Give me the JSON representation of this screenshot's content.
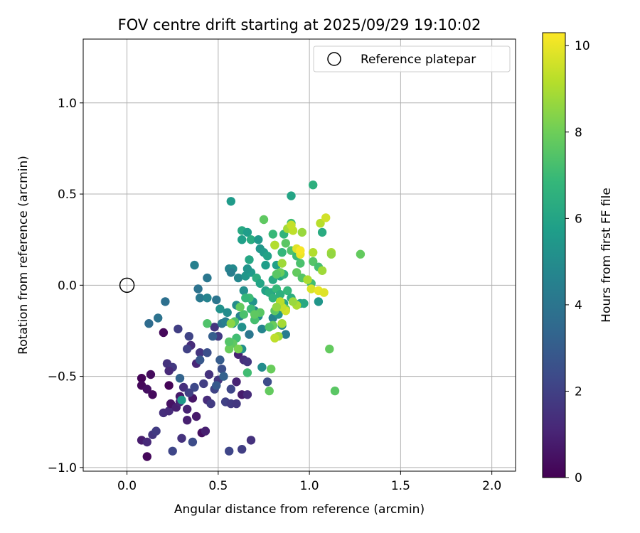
{
  "chart_data": {
    "type": "scatter",
    "title": "FOV centre drift starting at 2025/09/29 19:10:02",
    "xlabel": "Angular distance from reference (arcmin)",
    "ylabel": "Rotation from reference (arcmin)",
    "xlim": [
      -0.24,
      2.13
    ],
    "ylim": [
      -1.02,
      1.35
    ],
    "xticks": [
      0.0,
      0.5,
      1.0,
      1.5,
      2.0
    ],
    "xtick_labels": [
      "0.0",
      "0.5",
      "1.0",
      "1.5",
      "2.0"
    ],
    "yticks": [
      -1.0,
      -0.5,
      0.0,
      0.5,
      1.0
    ],
    "ytick_labels": [
      "−1.0",
      "−0.5",
      "0.0",
      "0.5",
      "1.0"
    ],
    "grid": true,
    "legend": {
      "label": "Reference platepar",
      "placement": "top-right"
    },
    "reference_point": {
      "x": 0.0,
      "y": 0.0
    },
    "colorbar": {
      "label": "Hours from first FF file",
      "range": [
        0,
        10.3
      ],
      "ticks": [
        0,
        2,
        4,
        6,
        8,
        10
      ],
      "tick_labels": [
        "0",
        "2",
        "4",
        "6",
        "8",
        "10"
      ],
      "colormap": "viridis",
      "colormap_stops": [
        "#440154",
        "#482878",
        "#3e4989",
        "#31688e",
        "#26828e",
        "#1f9e89",
        "#35b779",
        "#6ece58",
        "#b5de2b",
        "#fde725"
      ]
    },
    "points": [
      [
        0.08,
        -0.51,
        0.1
      ],
      [
        0.08,
        -0.55,
        0.2
      ],
      [
        0.13,
        -0.49,
        0.3
      ],
      [
        0.11,
        -0.57,
        0.4
      ],
      [
        0.14,
        -0.6,
        0.3
      ],
      [
        0.2,
        -0.26,
        0.2
      ],
      [
        0.23,
        -0.55,
        0.1
      ],
      [
        0.11,
        -0.94,
        0.2
      ],
      [
        0.08,
        -0.85,
        0.8
      ],
      [
        0.11,
        -0.86,
        1.2
      ],
      [
        0.14,
        -0.82,
        1.6
      ],
      [
        0.16,
        -0.8,
        1.8
      ],
      [
        0.2,
        -0.7,
        1.4
      ],
      [
        0.23,
        -0.69,
        1.3
      ],
      [
        0.24,
        -0.65,
        0.5
      ],
      [
        0.27,
        -0.67,
        0.9
      ],
      [
        0.29,
        -0.61,
        0.7
      ],
      [
        0.29,
        -0.64,
        1.1
      ],
      [
        0.31,
        -0.56,
        1.4
      ],
      [
        0.33,
        -0.74,
        0.9
      ],
      [
        0.36,
        -0.62,
        0.6
      ],
      [
        0.38,
        -0.72,
        0.7
      ],
      [
        0.41,
        -0.81,
        0.4
      ],
      [
        0.43,
        -0.8,
        0.9
      ],
      [
        0.33,
        -0.68,
        1.0
      ],
      [
        0.3,
        -0.84,
        1.5
      ],
      [
        0.36,
        -0.86,
        2.4
      ],
      [
        0.25,
        -0.91,
        2.2
      ],
      [
        0.22,
        -0.43,
        1.5
      ],
      [
        0.25,
        -0.45,
        1.7
      ],
      [
        0.23,
        -0.47,
        1.2
      ],
      [
        0.28,
        -0.24,
        1.9
      ],
      [
        0.34,
        -0.28,
        2.1
      ],
      [
        0.35,
        -0.33,
        1.3
      ],
      [
        0.33,
        -0.35,
        2.0
      ],
      [
        0.38,
        -0.43,
        1.1
      ],
      [
        0.4,
        -0.37,
        1.6
      ],
      [
        0.37,
        -0.56,
        2.3
      ],
      [
        0.34,
        -0.59,
        2.0
      ],
      [
        0.42,
        -0.54,
        1.9
      ],
      [
        0.45,
        -0.49,
        1.5
      ],
      [
        0.44,
        -0.63,
        1.3
      ],
      [
        0.46,
        -0.65,
        1.8
      ],
      [
        0.48,
        -0.57,
        2.1
      ],
      [
        0.5,
        -0.52,
        1.7
      ],
      [
        0.52,
        -0.46,
        2.5
      ],
      [
        0.54,
        -0.64,
        2.0
      ],
      [
        0.57,
        -0.65,
        1.8
      ],
      [
        0.6,
        -0.65,
        1.7
      ],
      [
        0.57,
        -0.57,
        2.2
      ],
      [
        0.6,
        -0.53,
        1.0
      ],
      [
        0.63,
        -0.6,
        0.8
      ],
      [
        0.66,
        -0.6,
        1.3
      ],
      [
        0.61,
        -0.38,
        1.0
      ],
      [
        0.64,
        -0.41,
        1.4
      ],
      [
        0.66,
        -0.42,
        1.6
      ],
      [
        0.5,
        -0.28,
        1.8
      ],
      [
        0.48,
        -0.23,
        1.6
      ],
      [
        0.56,
        -0.91,
        2.2
      ],
      [
        0.63,
        -0.9,
        1.9
      ],
      [
        0.68,
        -0.85,
        1.5
      ],
      [
        0.77,
        -0.53,
        2.4
      ],
      [
        0.29,
        -0.51,
        3.3
      ],
      [
        0.3,
        -0.63,
        5.5
      ],
      [
        0.4,
        -0.41,
        2.8
      ],
      [
        0.44,
        -0.37,
        2.5
      ],
      [
        0.53,
        -0.5,
        3.2
      ],
      [
        0.49,
        -0.55,
        2.9
      ],
      [
        0.51,
        -0.41,
        3.0
      ],
      [
        0.47,
        -0.28,
        3.1
      ],
      [
        0.12,
        -0.21,
        3.6
      ],
      [
        0.17,
        -0.18,
        3.9
      ],
      [
        0.21,
        -0.09,
        3.8
      ],
      [
        0.37,
        0.11,
        4.5
      ],
      [
        0.44,
        0.04,
        4.1
      ],
      [
        0.39,
        -0.02,
        3.9
      ],
      [
        0.4,
        -0.07,
        4.2
      ],
      [
        0.44,
        -0.07,
        4.6
      ],
      [
        0.49,
        -0.08,
        4.0
      ],
      [
        0.51,
        -0.13,
        5.2
      ],
      [
        0.52,
        -0.21,
        4.1
      ],
      [
        0.54,
        -0.2,
        4.4
      ],
      [
        0.55,
        -0.15,
        5.0
      ],
      [
        0.58,
        -0.21,
        5.5
      ],
      [
        0.6,
        -0.11,
        5.0
      ],
      [
        0.62,
        -0.17,
        4.6
      ],
      [
        0.63,
        -0.23,
        5.2
      ],
      [
        0.67,
        -0.27,
        4.1
      ],
      [
        0.56,
        0.09,
        4.6
      ],
      [
        0.58,
        0.09,
        4.9
      ],
      [
        0.57,
        0.07,
        4.4
      ],
      [
        0.61,
        0.04,
        4.8
      ],
      [
        0.64,
        -0.03,
        5.1
      ],
      [
        0.65,
        0.05,
        5.4
      ],
      [
        0.68,
        0.07,
        5.6
      ],
      [
        0.69,
        -0.09,
        5.3
      ],
      [
        0.7,
        -0.14,
        4.7
      ],
      [
        0.72,
        -0.17,
        5.0
      ],
      [
        0.74,
        -0.24,
        4.7
      ],
      [
        0.76,
        -0.03,
        5.9
      ],
      [
        0.79,
        -0.04,
        5.2
      ],
      [
        0.8,
        -0.18,
        4.6
      ],
      [
        0.83,
        -0.16,
        5.3
      ],
      [
        0.85,
        -0.22,
        4.8
      ],
      [
        0.87,
        -0.27,
        4.3
      ],
      [
        0.63,
        -0.35,
        5.1
      ],
      [
        0.74,
        -0.45,
        5.0
      ],
      [
        0.57,
        0.46,
        5.6
      ],
      [
        0.63,
        0.3,
        6.2
      ],
      [
        0.63,
        0.25,
        5.8
      ],
      [
        0.66,
        0.29,
        5.7
      ],
      [
        0.68,
        0.25,
        6.3
      ],
      [
        0.72,
        0.25,
        5.5
      ],
      [
        0.73,
        0.2,
        5.4
      ],
      [
        0.75,
        0.18,
        5.6
      ],
      [
        0.77,
        0.16,
        5.9
      ],
      [
        0.67,
        0.14,
        6.1
      ],
      [
        0.66,
        0.09,
        5.3
      ],
      [
        0.71,
        0.04,
        6.4
      ],
      [
        0.73,
        0.01,
        6.0
      ],
      [
        0.76,
        0.11,
        5.7
      ],
      [
        0.8,
        0.03,
        6.2
      ],
      [
        0.82,
        0.11,
        5.8
      ],
      [
        0.84,
        0.05,
        6.0
      ],
      [
        0.86,
        0.06,
        6.6
      ],
      [
        0.78,
        -0.04,
        6.3
      ],
      [
        0.8,
        -0.07,
        6.6
      ],
      [
        0.82,
        -0.02,
        6.9
      ],
      [
        0.84,
        -0.05,
        6.5
      ],
      [
        0.86,
        -0.1,
        6.1
      ],
      [
        0.88,
        -0.03,
        6.8
      ],
      [
        0.9,
        -0.07,
        6.4
      ],
      [
        0.95,
        -0.1,
        5.9
      ],
      [
        0.97,
        -0.1,
        6.2
      ],
      [
        1.05,
        -0.09,
        5.4
      ],
      [
        0.9,
        0.49,
        6.0
      ],
      [
        1.02,
        0.55,
        6.5
      ],
      [
        1.07,
        0.29,
        6.3
      ],
      [
        0.9,
        0.34,
        7.1
      ],
      [
        0.86,
        0.28,
        6.7
      ],
      [
        0.8,
        0.28,
        6.9
      ],
      [
        0.75,
        0.36,
        7.7
      ],
      [
        0.81,
        0.22,
        7.2
      ],
      [
        0.85,
        0.18,
        6.8
      ],
      [
        0.87,
        0.23,
        7.6
      ],
      [
        0.9,
        0.19,
        7.4
      ],
      [
        0.93,
        0.16,
        7.0
      ],
      [
        0.95,
        0.12,
        7.3
      ],
      [
        0.93,
        0.07,
        7.8
      ],
      [
        0.96,
        0.04,
        7.5
      ],
      [
        1.01,
        0.01,
        7.1
      ],
      [
        1.02,
        0.13,
        7.5
      ],
      [
        1.05,
        0.1,
        7.2
      ],
      [
        0.84,
        0.07,
        7.9
      ],
      [
        0.82,
        0.06,
        7.6
      ],
      [
        0.87,
        -0.13,
        7.8
      ],
      [
        0.84,
        -0.11,
        8.0
      ],
      [
        0.81,
        -0.14,
        7.7
      ],
      [
        0.8,
        -0.22,
        7.9
      ],
      [
        0.78,
        -0.23,
        7.4
      ],
      [
        0.73,
        -0.15,
        7.6
      ],
      [
        0.7,
        -0.19,
        7.2
      ],
      [
        0.68,
        -0.13,
        7.0
      ],
      [
        0.64,
        -0.16,
        7.3
      ],
      [
        0.62,
        -0.12,
        7.8
      ],
      [
        0.59,
        -0.2,
        7.4
      ],
      [
        0.6,
        -0.29,
        7.1
      ],
      [
        0.58,
        -0.32,
        7.7
      ],
      [
        0.56,
        -0.35,
        7.9
      ],
      [
        0.56,
        -0.31,
        7.5
      ],
      [
        0.44,
        -0.21,
        7.4
      ],
      [
        0.66,
        -0.48,
        7.1
      ],
      [
        0.79,
        -0.46,
        7.9
      ],
      [
        0.78,
        -0.58,
        7.8
      ],
      [
        1.11,
        -0.35,
        7.8
      ],
      [
        1.14,
        -0.58,
        7.6
      ],
      [
        1.28,
        0.17,
        7.8
      ],
      [
        0.7,
        -0.16,
        7.7
      ],
      [
        0.67,
        -0.07,
        7.0
      ],
      [
        0.65,
        -0.07,
        6.8
      ],
      [
        0.83,
        -0.28,
        8.9
      ],
      [
        0.81,
        -0.29,
        9.3
      ],
      [
        0.85,
        -0.21,
        8.9
      ],
      [
        0.87,
        -0.14,
        9.6
      ],
      [
        0.85,
        -0.12,
        9.4
      ],
      [
        0.84,
        -0.09,
        9.2
      ],
      [
        0.85,
        0.12,
        8.8
      ],
      [
        0.81,
        0.22,
        9.1
      ],
      [
        0.88,
        0.31,
        8.9
      ],
      [
        0.91,
        0.3,
        9.3
      ],
      [
        0.9,
        0.33,
        9.4
      ],
      [
        0.96,
        0.29,
        8.7
      ],
      [
        0.93,
        0.2,
        9.8
      ],
      [
        0.95,
        0.17,
        10.0
      ],
      [
        0.95,
        0.19,
        10.2
      ],
      [
        1.02,
        0.18,
        9.1
      ],
      [
        1.12,
        0.18,
        9.0
      ],
      [
        1.12,
        0.17,
        8.6
      ],
      [
        1.06,
        0.34,
        9.2
      ],
      [
        1.09,
        0.37,
        9.6
      ],
      [
        1.01,
        -0.02,
        9.7
      ],
      [
        1.05,
        -0.03,
        10.0
      ],
      [
        1.08,
        -0.04,
        9.8
      ],
      [
        1.07,
        0.08,
        8.8
      ],
      [
        0.99,
        0.03,
        9.0
      ],
      [
        0.93,
        -0.11,
        9.0
      ],
      [
        0.91,
        -0.09,
        8.7
      ],
      [
        0.82,
        -0.12,
        8.6
      ],
      [
        0.61,
        -0.35,
        8.2
      ],
      [
        0.57,
        -0.21,
        8.5
      ]
    ]
  }
}
